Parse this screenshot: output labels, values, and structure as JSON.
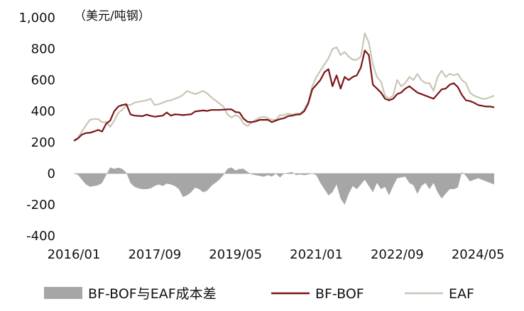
{
  "chart_data": {
    "type": "line",
    "unit_label": "（美元/吨钢）",
    "ylim": [
      -400,
      1000
    ],
    "yticks": [
      "1,000",
      "800",
      "600",
      "400",
      "200",
      "0",
      "-200",
      "-400"
    ],
    "ytick_values": [
      1000,
      800,
      600,
      400,
      200,
      0,
      -200,
      -400
    ],
    "xticks": [
      "2016/01",
      "2017/09",
      "2019/05",
      "2021/01",
      "2022/09",
      "2024/05"
    ],
    "xtick_dates": [
      "2016-01",
      "2017-09",
      "2019-05",
      "2021-01",
      "2022-09",
      "2024-05"
    ],
    "x_range": [
      "2016-01",
      "2024-09"
    ],
    "grid": false,
    "legend_position": "bottom",
    "colors": {
      "diff": "#a6a6a6",
      "bfbof": "#7b1416",
      "eaf": "#c8c6b4"
    },
    "x": [
      "2016-01",
      "2016-02",
      "2016-03",
      "2016-04",
      "2016-05",
      "2016-06",
      "2016-07",
      "2016-08",
      "2016-09",
      "2016-10",
      "2016-11",
      "2016-12",
      "2017-01",
      "2017-02",
      "2017-03",
      "2017-04",
      "2017-05",
      "2017-06",
      "2017-07",
      "2017-08",
      "2017-09",
      "2017-10",
      "2017-11",
      "2017-12",
      "2018-01",
      "2018-02",
      "2018-03",
      "2018-04",
      "2018-05",
      "2018-06",
      "2018-07",
      "2018-08",
      "2018-09",
      "2018-10",
      "2018-11",
      "2018-12",
      "2019-01",
      "2019-02",
      "2019-03",
      "2019-04",
      "2019-05",
      "2019-06",
      "2019-07",
      "2019-08",
      "2019-09",
      "2019-10",
      "2019-11",
      "2019-12",
      "2020-01",
      "2020-02",
      "2020-03",
      "2020-04",
      "2020-05",
      "2020-06",
      "2020-07",
      "2020-08",
      "2020-09",
      "2020-10",
      "2020-11",
      "2020-12",
      "2021-01",
      "2021-02",
      "2021-03",
      "2021-04",
      "2021-05",
      "2021-06",
      "2021-07",
      "2021-08",
      "2021-09",
      "2021-10",
      "2021-11",
      "2021-12",
      "2022-01",
      "2022-02",
      "2022-03",
      "2022-04",
      "2022-05",
      "2022-06",
      "2022-07",
      "2022-08",
      "2022-09",
      "2022-10",
      "2022-11",
      "2022-12",
      "2023-01",
      "2023-02",
      "2023-03",
      "2023-04",
      "2023-05",
      "2023-06",
      "2023-07",
      "2023-08",
      "2023-09",
      "2023-10",
      "2023-11",
      "2023-12",
      "2024-01",
      "2024-02",
      "2024-03",
      "2024-04",
      "2024-05",
      "2024-06",
      "2024-07",
      "2024-08",
      "2024-09"
    ],
    "series": [
      {
        "name": "BF-BOF与EAF成本差",
        "kind": "area",
        "values": [
          0,
          -8,
          -40,
          -70,
          -85,
          -80,
          -75,
          -60,
          -10,
          40,
          30,
          38,
          30,
          5,
          -60,
          -85,
          -95,
          -100,
          -100,
          -95,
          -80,
          -70,
          -80,
          -65,
          -70,
          -80,
          -100,
          -150,
          -140,
          -120,
          -90,
          -100,
          -120,
          -110,
          -80,
          -60,
          -40,
          -10,
          30,
          40,
          20,
          30,
          30,
          10,
          -5,
          -10,
          -15,
          -20,
          -10,
          -20,
          0,
          -25,
          0,
          5,
          10,
          -10,
          -5,
          -10,
          -5,
          0,
          -10,
          -60,
          -100,
          -140,
          -120,
          -70,
          -160,
          -200,
          -130,
          -80,
          -100,
          -70,
          -40,
          -80,
          -120,
          -60,
          -100,
          -85,
          -140,
          -80,
          -30,
          -25,
          -20,
          -60,
          -75,
          -130,
          -80,
          -60,
          -100,
          -60,
          -120,
          -160,
          -130,
          -100,
          -100,
          -90,
          10,
          -15,
          -50,
          -40,
          -30,
          -40,
          -50,
          -60,
          -70
        ]
      },
      {
        "name": "BF-BOF",
        "kind": "line",
        "values": [
          210,
          225,
          250,
          260,
          262,
          270,
          280,
          270,
          320,
          340,
          400,
          430,
          440,
          445,
          380,
          372,
          370,
          368,
          378,
          370,
          365,
          368,
          372,
          392,
          372,
          380,
          378,
          375,
          378,
          380,
          398,
          402,
          405,
          402,
          408,
          408,
          408,
          410,
          412,
          412,
          395,
          392,
          352,
          332,
          330,
          335,
          345,
          345,
          345,
          330,
          340,
          350,
          355,
          368,
          372,
          378,
          380,
          400,
          450,
          540,
          570,
          600,
          650,
          670,
          560,
          630,
          545,
          620,
          600,
          620,
          630,
          680,
          790,
          760,
          570,
          545,
          520,
          480,
          470,
          480,
          510,
          520,
          545,
          560,
          540,
          520,
          510,
          500,
          490,
          480,
          510,
          540,
          545,
          570,
          580,
          555,
          505,
          470,
          465,
          455,
          440,
          435,
          430,
          430,
          425
        ]
      },
      {
        "name": "EAF",
        "kind": "line",
        "values": [
          210,
          230,
          270,
          310,
          345,
          350,
          350,
          330,
          330,
          300,
          340,
          390,
          410,
          440,
          440,
          455,
          460,
          465,
          470,
          480,
          440,
          445,
          455,
          465,
          470,
          480,
          490,
          505,
          530,
          520,
          510,
          520,
          530,
          515,
          490,
          470,
          450,
          430,
          380,
          360,
          375,
          362,
          320,
          305,
          330,
          345,
          360,
          365,
          355,
          345,
          345,
          375,
          375,
          385,
          378,
          385,
          385,
          410,
          460,
          560,
          620,
          660,
          700,
          740,
          800,
          810,
          760,
          780,
          750,
          730,
          730,
          750,
          900,
          840,
          700,
          620,
          590,
          500,
          480,
          500,
          600,
          560,
          580,
          620,
          600,
          640,
          600,
          580,
          580,
          530,
          620,
          660,
          620,
          640,
          630,
          640,
          600,
          580,
          520,
          500,
          490,
          480,
          480,
          490,
          500
        ]
      }
    ]
  }
}
